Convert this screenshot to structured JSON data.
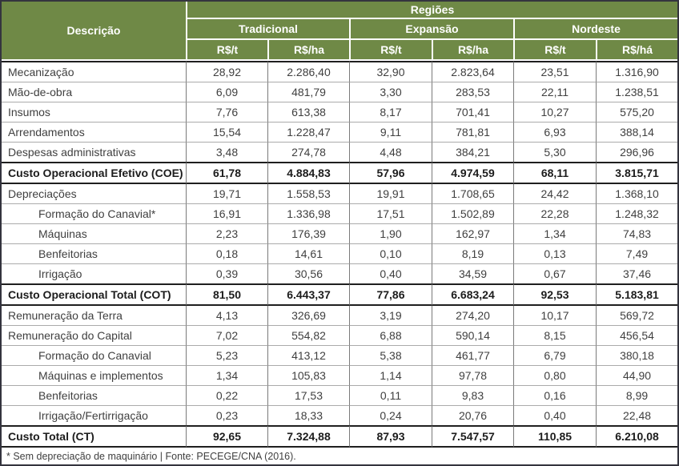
{
  "colors": {
    "header_bg": "#6F8946",
    "header_text": "#FFFFFF",
    "outer_border": "#34343E",
    "body_text": "#3F3F3F",
    "grid_vertical": "#7A7A7A",
    "grid_horizontal": "#ABABAB",
    "strong_line": "#1F1F1F"
  },
  "table": {
    "header": {
      "description_label": "Descrição",
      "regions_label": "Regiões",
      "region_groups": [
        {
          "name": "Tradicional",
          "units": [
            "R$/t",
            "R$/ha"
          ]
        },
        {
          "name": "Expansão",
          "units": [
            "R$/t",
            "R$/ha"
          ]
        },
        {
          "name": "Nordeste",
          "units": [
            "R$/t",
            "R$/há"
          ]
        }
      ]
    },
    "rows": [
      {
        "label": "Mecanização",
        "style": "normal",
        "values": [
          "28,92",
          "2.286,40",
          "32,90",
          "2.823,64",
          "23,51",
          "1.316,90"
        ]
      },
      {
        "label": "Mão-de-obra",
        "style": "normal",
        "values": [
          "6,09",
          "481,79",
          "3,30",
          "283,53",
          "22,11",
          "1.238,51"
        ]
      },
      {
        "label": "Insumos",
        "style": "normal",
        "values": [
          "7,76",
          "613,38",
          "8,17",
          "701,41",
          "10,27",
          "575,20"
        ]
      },
      {
        "label": "Arrendamentos",
        "style": "normal",
        "values": [
          "15,54",
          "1.228,47",
          "9,11",
          "781,81",
          "6,93",
          "388,14"
        ]
      },
      {
        "label": "Despesas administrativas",
        "style": "normal",
        "values": [
          "3,48",
          "274,78",
          "4,48",
          "384,21",
          "5,30",
          "296,96"
        ]
      },
      {
        "label": "Custo Operacional Efetivo (COE)",
        "style": "bold",
        "values": [
          "61,78",
          "4.884,83",
          "57,96",
          "4.974,59",
          "68,11",
          "3.815,71"
        ]
      },
      {
        "label": "Depreciações",
        "style": "normal",
        "values": [
          "19,71",
          "1.558,53",
          "19,91",
          "1.708,65",
          "24,42",
          "1.368,10"
        ]
      },
      {
        "label": "Formação do Canavial*",
        "style": "indent",
        "values": [
          "16,91",
          "1.336,98",
          "17,51",
          "1.502,89",
          "22,28",
          "1.248,32"
        ]
      },
      {
        "label": "Máquinas",
        "style": "indent",
        "values": [
          "2,23",
          "176,39",
          "1,90",
          "162,97",
          "1,34",
          "74,83"
        ]
      },
      {
        "label": "Benfeitorias",
        "style": "indent",
        "values": [
          "0,18",
          "14,61",
          "0,10",
          "8,19",
          "0,13",
          "7,49"
        ]
      },
      {
        "label": "Irrigação",
        "style": "indent",
        "values": [
          "0,39",
          "30,56",
          "0,40",
          "34,59",
          "0,67",
          "37,46"
        ]
      },
      {
        "label": "Custo Operacional Total (COT)",
        "style": "bold",
        "values": [
          "81,50",
          "6.443,37",
          "77,86",
          "6.683,24",
          "92,53",
          "5.183,81"
        ]
      },
      {
        "label": "Remuneração da Terra",
        "style": "normal",
        "values": [
          "4,13",
          "326,69",
          "3,19",
          "274,20",
          "10,17",
          "569,72"
        ]
      },
      {
        "label": "Remuneração do Capital",
        "style": "normal",
        "values": [
          "7,02",
          "554,82",
          "6,88",
          "590,14",
          "8,15",
          "456,54"
        ]
      },
      {
        "label": "Formação do Canavial",
        "style": "indent",
        "values": [
          "5,23",
          "413,12",
          "5,38",
          "461,77",
          "6,79",
          "380,18"
        ]
      },
      {
        "label": "Máquinas e implementos",
        "style": "indent",
        "values": [
          "1,34",
          "105,83",
          "1,14",
          "97,78",
          "0,80",
          "44,90"
        ]
      },
      {
        "label": "Benfeitorias",
        "style": "indent",
        "values": [
          "0,22",
          "17,53",
          "0,11",
          "9,83",
          "0,16",
          "8,99"
        ]
      },
      {
        "label": "Irrigação/Fertirrigação",
        "style": "indent",
        "values": [
          "0,23",
          "18,33",
          "0,24",
          "20,76",
          "0,40",
          "22,48"
        ]
      },
      {
        "label": "Custo Total (CT)",
        "style": "bold",
        "values": [
          "92,65",
          "7.324,88",
          "87,93",
          "7.547,57",
          "110,85",
          "6.210,08"
        ]
      }
    ],
    "footnote": "* Sem depreciação de maquinário | Fonte: PECEGE/CNA (2016)."
  }
}
